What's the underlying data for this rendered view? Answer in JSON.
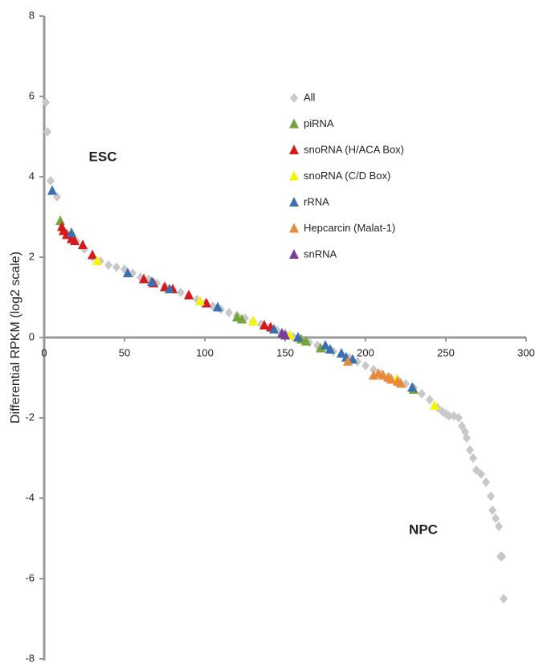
{
  "chart_data": {
    "type": "scatter",
    "y_label": "Differential RPKM (log2 scale)",
    "annotations": [
      "ESC",
      "NPC"
    ],
    "xlim": [
      0,
      300
    ],
    "xticks": [
      0,
      50,
      100,
      150,
      200,
      250,
      300
    ],
    "ylim": [
      -8,
      8
    ],
    "yticks": [
      -8,
      -6,
      -4,
      -2,
      0,
      2,
      4,
      6,
      8
    ],
    "legend": "upper right",
    "series": [
      {
        "name": "All",
        "color": "#c8c8c8",
        "marker": "diamond",
        "x": [
          1,
          2,
          4,
          8,
          10,
          14,
          20,
          25,
          30,
          35,
          40,
          45,
          50,
          55,
          60,
          65,
          70,
          75,
          80,
          85,
          90,
          95,
          100,
          105,
          110,
          115,
          120,
          125,
          130,
          135,
          140,
          145,
          150,
          155,
          160,
          165,
          170,
          175,
          180,
          185,
          190,
          195,
          200,
          205,
          210,
          215,
          220,
          225,
          230,
          235,
          240,
          245,
          248,
          250,
          252,
          255,
          258,
          260,
          262,
          263,
          265,
          267,
          269,
          272,
          275,
          278,
          279,
          281,
          283,
          284,
          285,
          286
        ],
        "values": [
          5.85,
          5.12,
          3.9,
          3.5,
          2.85,
          2.6,
          2.4,
          2.2,
          2.0,
          1.9,
          1.8,
          1.75,
          1.7,
          1.6,
          1.5,
          1.45,
          1.35,
          1.28,
          1.2,
          1.12,
          1.05,
          0.95,
          0.85,
          0.78,
          0.7,
          0.62,
          0.55,
          0.48,
          0.4,
          0.33,
          0.25,
          0.18,
          0.1,
          0.02,
          -0.05,
          -0.12,
          -0.2,
          -0.28,
          -0.35,
          -0.42,
          -0.5,
          -0.6,
          -0.7,
          -0.8,
          -0.9,
          -0.98,
          -1.05,
          -1.15,
          -1.25,
          -1.4,
          -1.55,
          -1.75,
          -1.85,
          -1.9,
          -1.95,
          -1.95,
          -2.0,
          -2.2,
          -2.35,
          -2.5,
          -2.8,
          -3.0,
          -3.3,
          -3.4,
          -3.6,
          -3.95,
          -4.3,
          -4.5,
          -4.7,
          -5.45,
          -5.45,
          -6.5
        ]
      },
      {
        "name": "piRNA",
        "color": "#77a33b",
        "marker": "triangle",
        "x": [
          10,
          120,
          123,
          160,
          163,
          172,
          230
        ],
        "values": [
          2.9,
          0.5,
          0.45,
          -0.05,
          -0.1,
          -0.27,
          -1.3
        ]
      },
      {
        "name": "snoRNA (H/ACA Box)",
        "color": "#d7191c",
        "marker": "triangle",
        "x": [
          11,
          12,
          14,
          17,
          19,
          24,
          30,
          62,
          68,
          75,
          80,
          90,
          101,
          137,
          141
        ],
        "values": [
          2.75,
          2.65,
          2.55,
          2.45,
          2.4,
          2.3,
          2.05,
          1.45,
          1.35,
          1.25,
          1.2,
          1.05,
          0.85,
          0.3,
          0.25
        ]
      },
      {
        "name": "snoRNA (C/D Box)",
        "color": "#f5f500",
        "marker": "triangle",
        "x": [
          33,
          97,
          130,
          153,
          219,
          243
        ],
        "values": [
          1.9,
          0.9,
          0.4,
          0.05,
          -1.05,
          -1.7
        ]
      },
      {
        "name": "rRNA",
        "color": "#3a6fb0",
        "marker": "triangle",
        "x": [
          5,
          17,
          52,
          67,
          78,
          108,
          143,
          158,
          175,
          178,
          185,
          188,
          192,
          229
        ],
        "values": [
          3.65,
          2.6,
          1.6,
          1.38,
          1.2,
          0.75,
          0.2,
          0,
          -0.2,
          -0.3,
          -0.4,
          -0.5,
          -0.55,
          -1.25
        ]
      },
      {
        "name": "Hepcarcin (Malat-1)",
        "color": "#e88a3a",
        "marker": "triangle",
        "x": [
          189,
          205,
          208,
          211,
          214,
          216,
          220,
          222
        ],
        "values": [
          -0.6,
          -0.95,
          -0.9,
          -0.95,
          -1.0,
          -1.05,
          -1.1,
          -1.15
        ]
      },
      {
        "name": "snRNA",
        "color": "#7a3d9a",
        "marker": "triangle",
        "x": [
          148,
          150
        ],
        "values": [
          0.1,
          0.05
        ]
      }
    ]
  }
}
